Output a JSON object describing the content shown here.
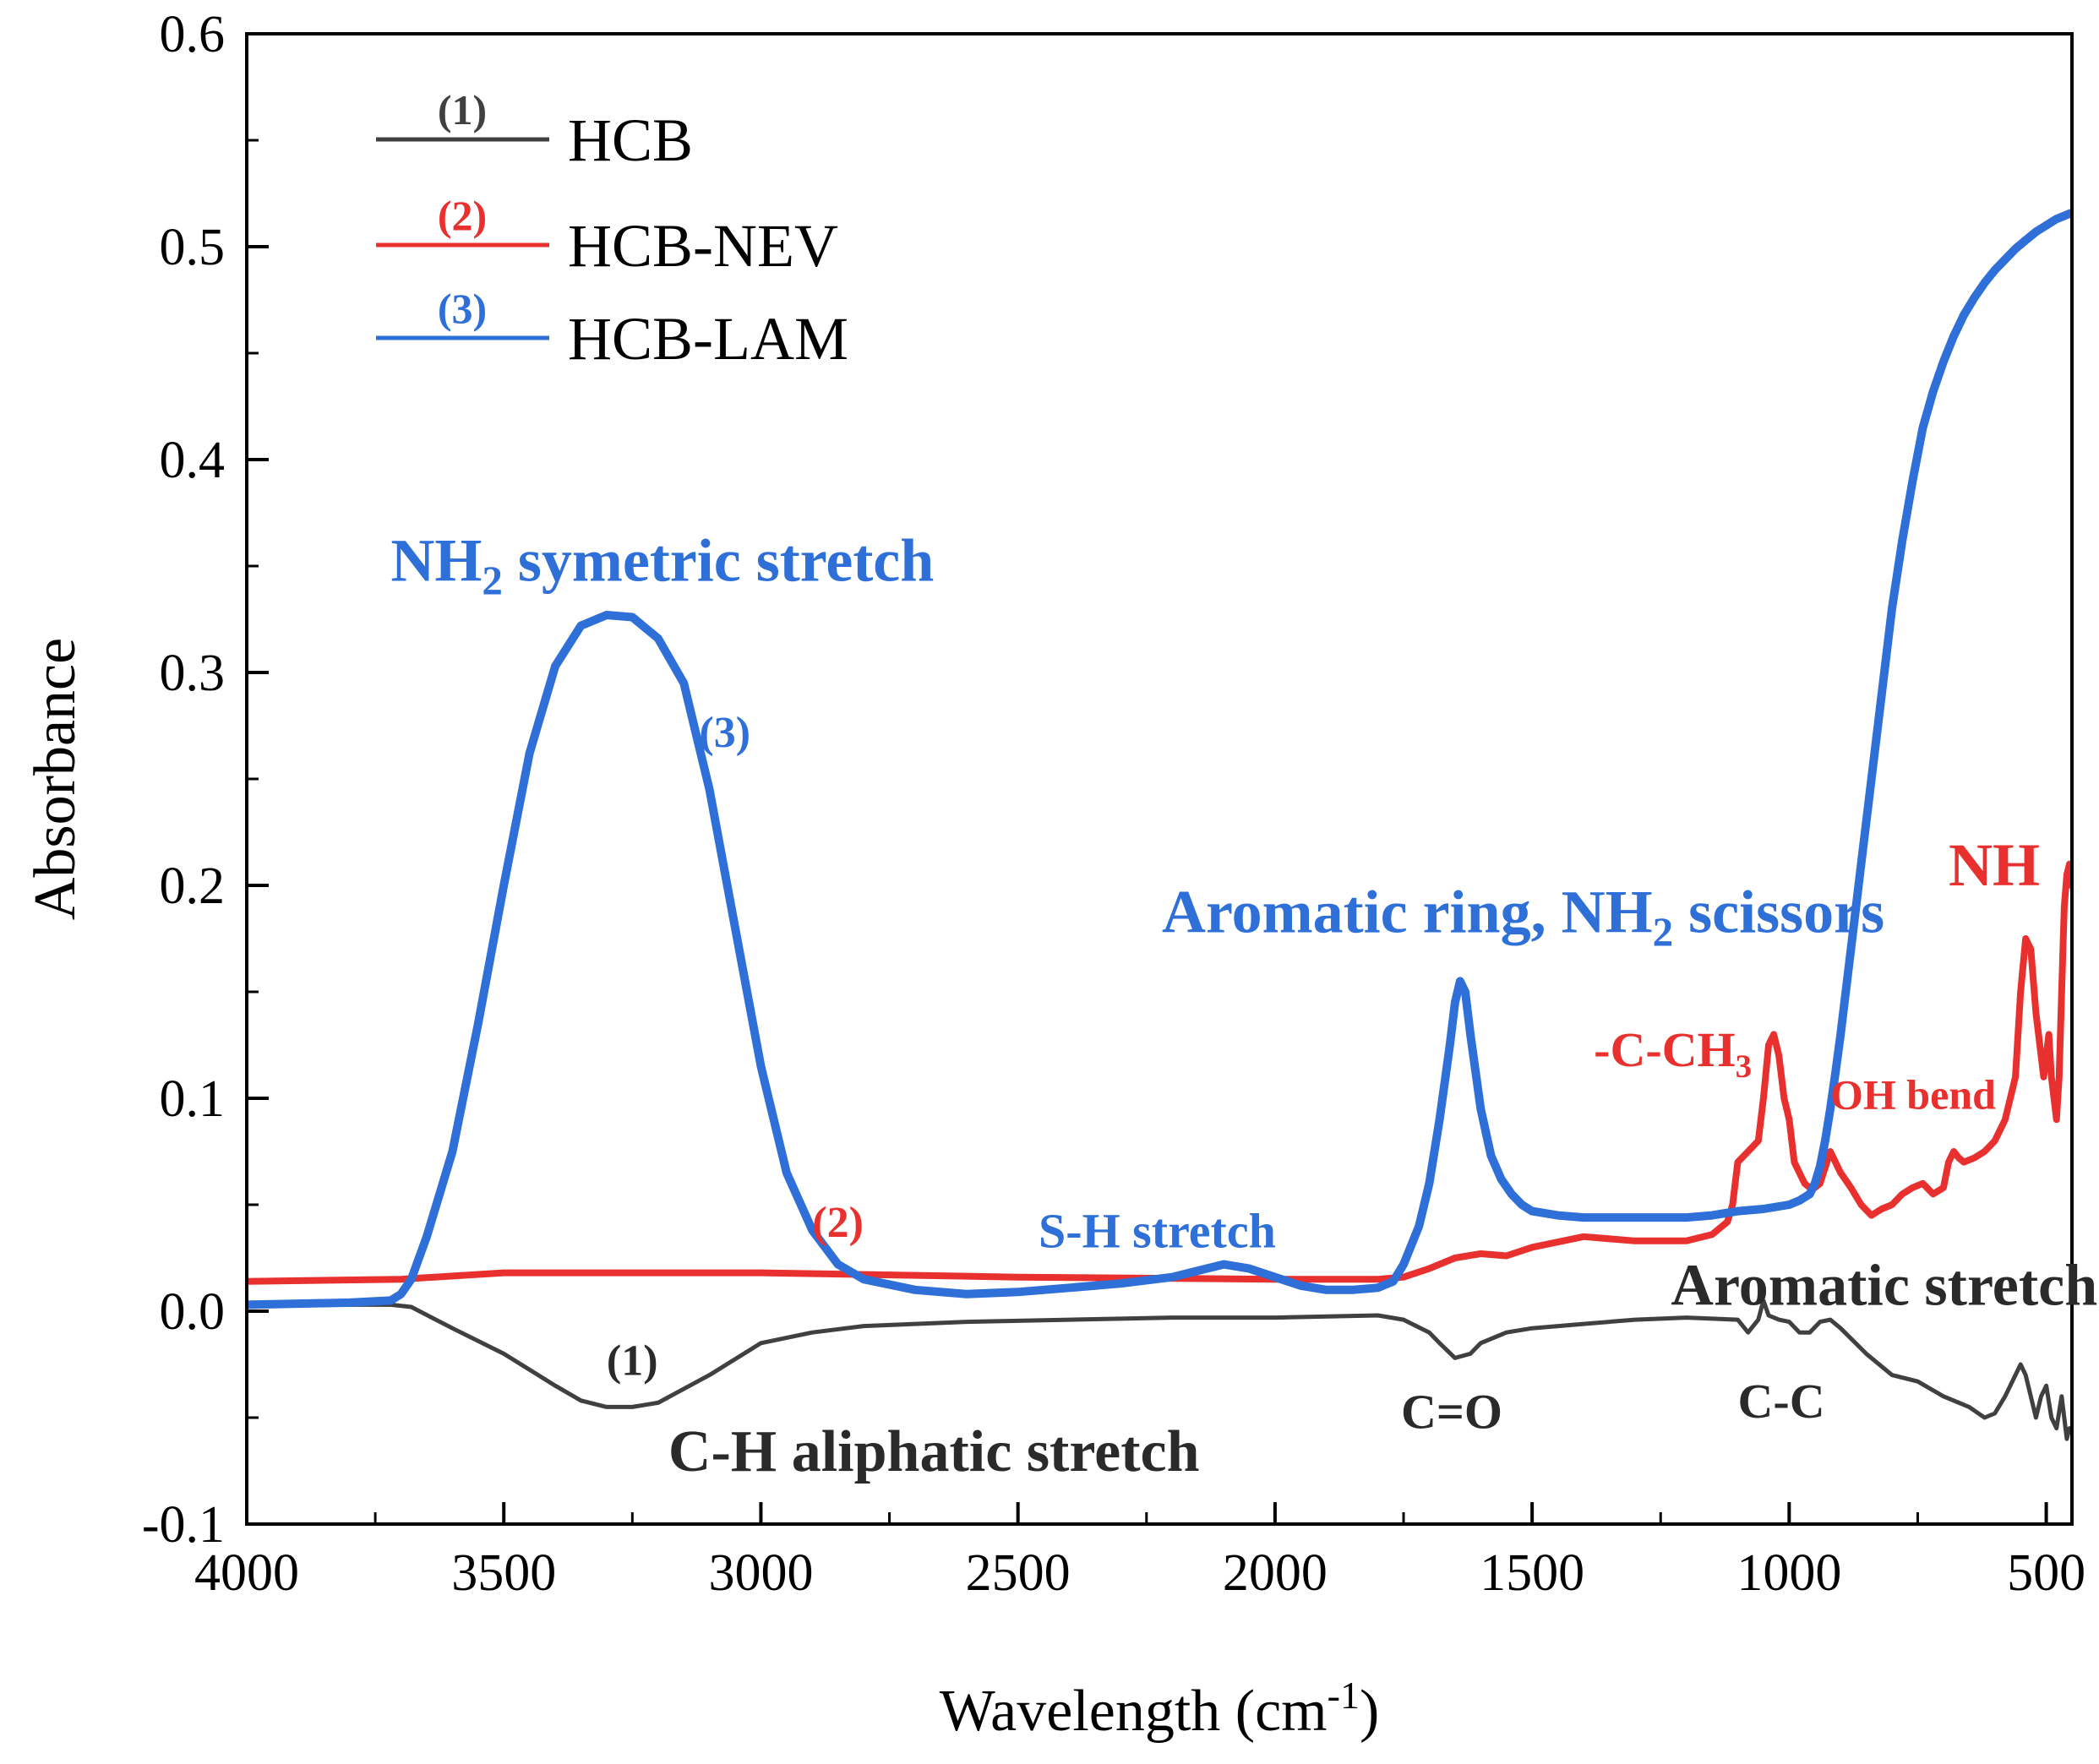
{
  "chart_data": {
    "type": "line",
    "xlabel_main": "Wavelength (cm",
    "xlabel_sup": "-1",
    "xlabel_close": ")",
    "ylabel": "Absorbance",
    "xlim": [
      4000,
      450
    ],
    "ylim": [
      -0.1,
      0.6
    ],
    "x_ticks": [
      4000,
      3500,
      3000,
      2500,
      2000,
      1500,
      1000,
      500
    ],
    "x_tick_labels": [
      "4000",
      "3500",
      "3000",
      "2500",
      "2000",
      "1500",
      "1000",
      "500"
    ],
    "y_ticks": [
      -0.1,
      0.0,
      0.1,
      0.2,
      0.3,
      0.4,
      0.5,
      0.6
    ],
    "y_tick_labels": [
      "-0.1",
      "0.0",
      "0.1",
      "0.2",
      "0.3",
      "0.4",
      "0.5",
      "0.6"
    ],
    "legend_position": "top-left",
    "series": [
      {
        "name": "HCB",
        "number": "(1)",
        "color": "#404040",
        "x": [
          4000,
          3800,
          3720,
          3680,
          3600,
          3500,
          3400,
          3350,
          3300,
          3250,
          3200,
          3100,
          3000,
          2900,
          2800,
          2600,
          2400,
          2200,
          2000,
          1800,
          1750,
          1700,
          1680,
          1650,
          1620,
          1600,
          1550,
          1500,
          1400,
          1300,
          1200,
          1100,
          1080,
          1060,
          1050,
          1040,
          1020,
          1000,
          980,
          960,
          940,
          920,
          900,
          850,
          800,
          750,
          700,
          650,
          620,
          600,
          580,
          560,
          550,
          540,
          520,
          510,
          500,
          490,
          480,
          470,
          460,
          455
        ],
        "y": [
          0.003,
          0.003,
          0.003,
          0.002,
          -0.008,
          -0.02,
          -0.035,
          -0.042,
          -0.045,
          -0.045,
          -0.043,
          -0.03,
          -0.015,
          -0.01,
          -0.007,
          -0.005,
          -0.004,
          -0.003,
          -0.003,
          -0.002,
          -0.004,
          -0.01,
          -0.015,
          -0.022,
          -0.02,
          -0.015,
          -0.01,
          -0.008,
          -0.006,
          -0.004,
          -0.003,
          -0.004,
          -0.01,
          -0.004,
          0.005,
          -0.002,
          -0.004,
          -0.005,
          -0.01,
          -0.01,
          -0.005,
          -0.004,
          -0.008,
          -0.02,
          -0.03,
          -0.033,
          -0.04,
          -0.045,
          -0.05,
          -0.048,
          -0.04,
          -0.03,
          -0.025,
          -0.03,
          -0.05,
          -0.04,
          -0.035,
          -0.05,
          -0.055,
          -0.04,
          -0.06,
          -0.055
        ]
      },
      {
        "name": "HCB-NEV",
        "number": "(2)",
        "color": "#e8302f",
        "x": [
          4000,
          3700,
          3500,
          3000,
          2500,
          2000,
          1800,
          1750,
          1700,
          1650,
          1600,
          1550,
          1500,
          1400,
          1300,
          1200,
          1150,
          1120,
          1110,
          1100,
          1080,
          1060,
          1050,
          1040,
          1030,
          1020,
          1010,
          1000,
          990,
          980,
          970,
          960,
          950,
          940,
          920,
          900,
          880,
          860,
          840,
          820,
          800,
          780,
          760,
          740,
          720,
          700,
          690,
          680,
          670,
          660,
          640,
          620,
          600,
          580,
          560,
          550,
          540,
          530,
          520,
          510,
          505,
          500,
          495,
          490,
          480,
          475,
          470,
          465,
          460,
          455,
          452
        ],
        "y": [
          0.014,
          0.015,
          0.018,
          0.018,
          0.016,
          0.015,
          0.015,
          0.016,
          0.02,
          0.025,
          0.027,
          0.026,
          0.03,
          0.035,
          0.033,
          0.033,
          0.036,
          0.042,
          0.05,
          0.07,
          0.075,
          0.08,
          0.1,
          0.125,
          0.13,
          0.12,
          0.1,
          0.09,
          0.07,
          0.065,
          0.06,
          0.058,
          0.058,
          0.06,
          0.075,
          0.065,
          0.058,
          0.05,
          0.045,
          0.048,
          0.05,
          0.055,
          0.058,
          0.06,
          0.055,
          0.058,
          0.07,
          0.075,
          0.072,
          0.07,
          0.072,
          0.075,
          0.08,
          0.09,
          0.11,
          0.15,
          0.175,
          0.17,
          0.14,
          0.12,
          0.11,
          0.12,
          0.13,
          0.11,
          0.09,
          0.11,
          0.15,
          0.19,
          0.205,
          0.21,
          0.2
        ]
      },
      {
        "name": "HCB-LAM",
        "number": "(3)",
        "color": "#2e6fd8",
        "x": [
          4000,
          3800,
          3720,
          3700,
          3680,
          3650,
          3600,
          3550,
          3500,
          3450,
          3400,
          3350,
          3300,
          3250,
          3200,
          3150,
          3100,
          3050,
          3000,
          2950,
          2900,
          2850,
          2800,
          2700,
          2600,
          2500,
          2400,
          2300,
          2200,
          2150,
          2100,
          2050,
          2000,
          1950,
          1900,
          1850,
          1800,
          1770,
          1750,
          1720,
          1700,
          1680,
          1660,
          1650,
          1640,
          1630,
          1620,
          1600,
          1580,
          1560,
          1540,
          1520,
          1500,
          1450,
          1400,
          1300,
          1200,
          1150,
          1100,
          1050,
          1000,
          980,
          960,
          950,
          940,
          930,
          920,
          910,
          900,
          880,
          860,
          840,
          820,
          800,
          780,
          760,
          740,
          720,
          700,
          680,
          660,
          640,
          620,
          600,
          580,
          560,
          540,
          520,
          500,
          480,
          460,
          450
        ],
        "y": [
          0.003,
          0.004,
          0.005,
          0.008,
          0.015,
          0.035,
          0.075,
          0.135,
          0.2,
          0.262,
          0.303,
          0.322,
          0.327,
          0.326,
          0.316,
          0.295,
          0.245,
          0.18,
          0.115,
          0.065,
          0.038,
          0.022,
          0.015,
          0.01,
          0.008,
          0.009,
          0.011,
          0.013,
          0.016,
          0.019,
          0.022,
          0.02,
          0.016,
          0.012,
          0.01,
          0.01,
          0.011,
          0.014,
          0.022,
          0.04,
          0.06,
          0.09,
          0.125,
          0.145,
          0.155,
          0.15,
          0.13,
          0.095,
          0.073,
          0.062,
          0.055,
          0.05,
          0.047,
          0.045,
          0.044,
          0.044,
          0.044,
          0.045,
          0.047,
          0.048,
          0.05,
          0.052,
          0.055,
          0.06,
          0.068,
          0.08,
          0.095,
          0.112,
          0.13,
          0.17,
          0.21,
          0.25,
          0.29,
          0.33,
          0.362,
          0.39,
          0.415,
          0.432,
          0.446,
          0.458,
          0.468,
          0.476,
          0.483,
          0.489,
          0.494,
          0.499,
          0.503,
          0.507,
          0.51,
          0.513,
          0.515,
          0.516
        ]
      }
    ],
    "annotations": [
      {
        "id": "nh2-sym",
        "color": "#2e6fd8",
        "size": 72,
        "x": 3720,
        "y": 0.343,
        "main": "NH",
        "sub": "2",
        "tail": " symetric stretch"
      },
      {
        "id": "curve3-label",
        "color": "#2e6fd8",
        "size": 52,
        "x": 3120,
        "y": 0.265,
        "main": "(3)"
      },
      {
        "id": "arom-nh2",
        "color": "#2e6fd8",
        "size": 72,
        "x": 2220,
        "y": 0.178,
        "main": "Aromatic ring, NH",
        "sub": "2",
        "tail": " scissors"
      },
      {
        "id": "sh-stretch",
        "color": "#2e6fd8",
        "size": 58,
        "x": 2460,
        "y": 0.03,
        "main": "S-H stretch"
      },
      {
        "id": "curve2-label",
        "color": "#e8302f",
        "size": 52,
        "x": 2900,
        "y": 0.035,
        "main": "(2)"
      },
      {
        "id": "c-ch3",
        "color": "#e8302f",
        "size": 58,
        "x": 1380,
        "y": 0.115,
        "main": "-C-CH",
        "sub": "3"
      },
      {
        "id": "oh-bend",
        "color": "#e8302f",
        "size": 50,
        "x": 920,
        "y": 0.095,
        "main": "OH bend"
      },
      {
        "id": "nh-red",
        "color": "#e8302f",
        "size": 72,
        "x": 690,
        "y": 0.2,
        "main": "NH"
      },
      {
        "id": "arom-stretch",
        "color": "#2a2a2a",
        "size": 70,
        "x": 1230,
        "y": 0.003,
        "main": "Aromatic stretch"
      },
      {
        "id": "curve1-label",
        "color": "#2a2a2a",
        "size": 52,
        "x": 3300,
        "y": -0.03,
        "main": "(1)"
      },
      {
        "id": "c-o",
        "color": "#2a2a2a",
        "size": 58,
        "x": 1755,
        "y": -0.055,
        "main": "C=O"
      },
      {
        "id": "c-c",
        "color": "#2a2a2a",
        "size": 58,
        "x": 1100,
        "y": -0.05,
        "main": "C-C"
      },
      {
        "id": "ch-aliph",
        "color": "#2a2a2a",
        "size": 70,
        "x": 3180,
        "y": -0.075,
        "main": "C-H aliphatic stretch"
      }
    ]
  }
}
